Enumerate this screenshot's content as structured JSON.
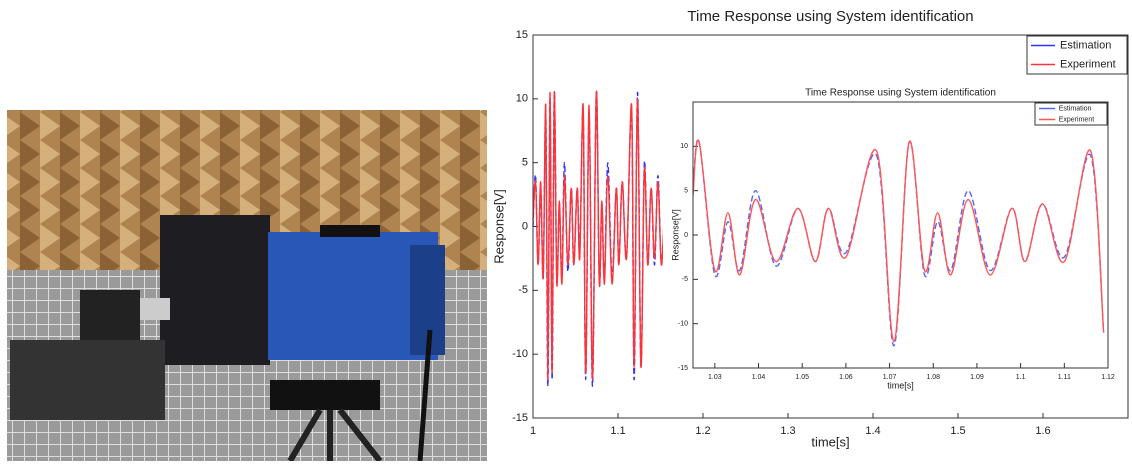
{
  "chart_data": [
    {
      "type": "line",
      "title": "Time Response using System identification",
      "x_label": "time[s]",
      "y_label": "Response[V]",
      "xlim": [
        1,
        1.7
      ],
      "xticks": [
        1,
        1.1,
        1.2,
        1.3,
        1.4,
        1.5,
        1.6
      ],
      "ylim": [
        -15,
        15
      ],
      "yticks": [
        -15,
        -10,
        -5,
        0,
        5,
        10,
        15
      ],
      "legend": "upper right",
      "x": [
        1.0,
        1.003,
        1.006,
        1.009,
        1.012,
        1.015,
        1.0175,
        1.02,
        1.0225,
        1.025,
        1.028,
        1.031,
        1.034,
        1.037,
        1.041,
        1.045,
        1.048,
        1.052,
        1.055,
        1.059,
        1.062,
        1.066,
        1.07,
        1.0745,
        1.078,
        1.081,
        1.084,
        1.088,
        1.093,
        1.098,
        1.101,
        1.105,
        1.11,
        1.116,
        1.119,
        1.123,
        1.127,
        1.131,
        1.135,
        1.139,
        1.143,
        1.147,
        1.151,
        1.155
      ],
      "series": [
        {
          "name": "Estimation",
          "color": "#3333ff",
          "values": [
            0,
            4,
            -3,
            3,
            -4,
            9,
            -12.5,
            10,
            -12,
            10.5,
            -4,
            1.5,
            -4,
            5,
            -3.5,
            3,
            -3,
            3,
            -2,
            9,
            -12,
            9,
            -12.5,
            10.5,
            -4.5,
            1.5,
            -4,
            5,
            -4,
            3,
            -3,
            3.5,
            -2.5,
            9,
            -12,
            10.5,
            -11,
            5,
            -3,
            3,
            -3,
            4,
            -3,
            2
          ]
        },
        {
          "name": "Experiment",
          "color": "#ff3333",
          "values": [
            0.5,
            3.5,
            -3,
            3.5,
            -4,
            9.5,
            -12,
            10.5,
            -11.5,
            10.5,
            -4.5,
            2,
            -4.5,
            4,
            -3,
            3,
            -3,
            3,
            -2.5,
            9.5,
            -11.5,
            9.5,
            -12,
            10.5,
            -4.5,
            2,
            -4.5,
            4,
            -4.5,
            3,
            -3,
            3.5,
            -2.5,
            9.5,
            -11,
            10,
            -11,
            4.5,
            -3,
            3,
            -2.5,
            3.5,
            -3,
            2
          ]
        }
      ]
    },
    {
      "type": "line",
      "title": "Time Response using System identification",
      "x_label": "time[s]",
      "y_label": "Response[V]",
      "xlim": [
        1.025,
        1.12
      ],
      "xticks": [
        1.03,
        1.04,
        1.05,
        1.06,
        1.07,
        1.08,
        1.09,
        1.1,
        1.11,
        1.12
      ],
      "ylim": [
        -15,
        15
      ],
      "yticks": [
        -15,
        -10,
        -5,
        0,
        5,
        10
      ],
      "legend": "upper right",
      "x": [
        1.025,
        1.0264,
        1.03,
        1.033,
        1.0357,
        1.0393,
        1.044,
        1.049,
        1.053,
        1.056,
        1.06,
        1.067,
        1.071,
        1.0745,
        1.078,
        1.081,
        1.084,
        1.088,
        1.093,
        1.098,
        1.101,
        1.105,
        1.11,
        1.116,
        1.119
      ],
      "series": [
        {
          "name": "Estimation",
          "color": "#5566ff",
          "values": [
            5,
            10.5,
            -4.5,
            1.5,
            -4,
            5,
            -3.5,
            3,
            -3,
            3,
            -2,
            9,
            -12.5,
            10.5,
            -4.5,
            1.5,
            -4,
            5,
            -4,
            3,
            -3,
            3.5,
            -2.5,
            9,
            -11
          ]
        },
        {
          "name": "Experiment",
          "color": "#ff5555",
          "values": [
            4.5,
            10.5,
            -4,
            2.5,
            -4.5,
            4,
            -3,
            3,
            -3,
            3,
            -2.5,
            9.5,
            -12,
            10.5,
            -4,
            2.5,
            -4.5,
            4,
            -4.5,
            3,
            -3,
            3.5,
            -3,
            9.5,
            -11
          ]
        }
      ]
    }
  ]
}
